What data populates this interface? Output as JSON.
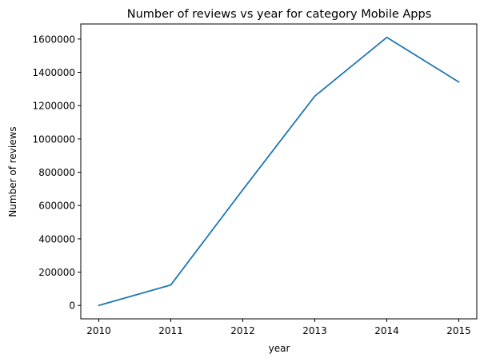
{
  "chart_data": {
    "type": "line",
    "title": "Number of reviews vs year for category Mobile Apps",
    "xlabel": "year",
    "ylabel": "Number of reviews",
    "x": [
      2010,
      2011,
      2012,
      2013,
      2014,
      2015
    ],
    "series": [
      {
        "values": [
          0,
          123000,
          695000,
          1257000,
          1610000,
          1342000
        ],
        "color": "#1f77b4"
      }
    ],
    "x_ticks": [
      "2010",
      "2011",
      "2012",
      "2013",
      "2014",
      "2015"
    ],
    "y_ticks": [
      "0",
      "200000",
      "400000",
      "600000",
      "800000",
      "1000000",
      "1200000",
      "1400000",
      "1600000"
    ],
    "xlim": [
      2009.75,
      2015.25
    ],
    "ylim": [
      -80500,
      1690500
    ],
    "grid": false,
    "legend": "none"
  }
}
